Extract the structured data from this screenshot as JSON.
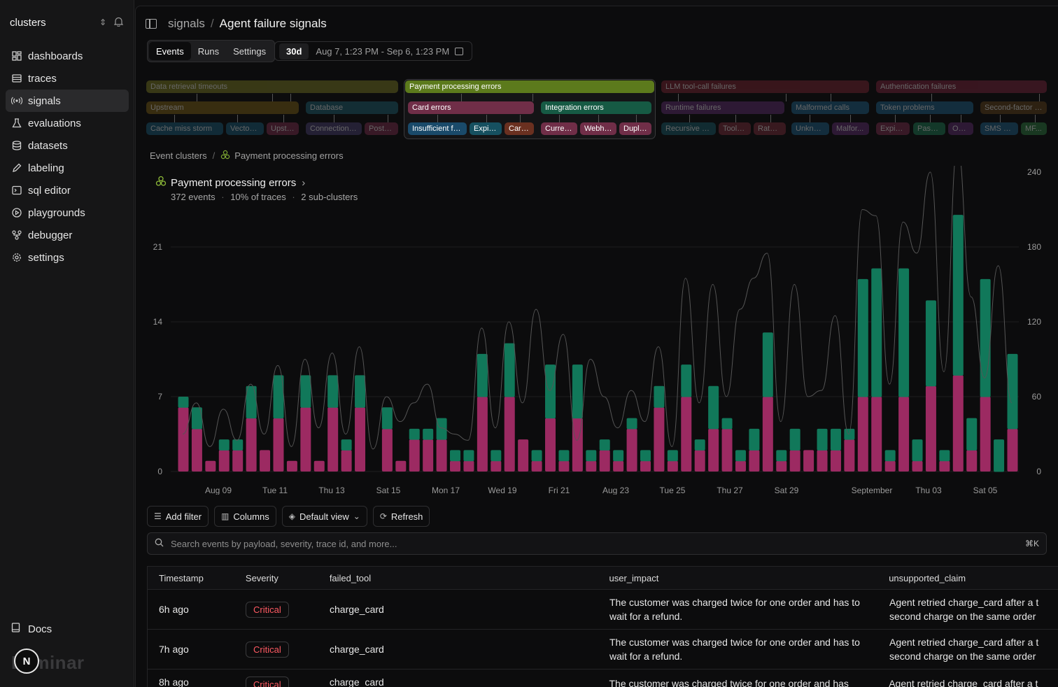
{
  "sidebar": {
    "title": "clusters",
    "items": [
      {
        "label": "dashboards",
        "icon": "dashboard-icon"
      },
      {
        "label": "traces",
        "icon": "traces-icon"
      },
      {
        "label": "signals",
        "icon": "signals-icon",
        "active": true
      },
      {
        "label": "evaluations",
        "icon": "flask-icon"
      },
      {
        "label": "datasets",
        "icon": "database-icon"
      },
      {
        "label": "labeling",
        "icon": "pen-icon"
      },
      {
        "label": "sql editor",
        "icon": "terminal-icon"
      },
      {
        "label": "playgrounds",
        "icon": "play-icon"
      },
      {
        "label": "debugger",
        "icon": "debug-icon"
      },
      {
        "label": "settings",
        "icon": "gear-icon"
      }
    ],
    "docs": "Docs",
    "logo": "Laminar",
    "avatar": "N"
  },
  "header": {
    "crumb": "signals",
    "sep": "/",
    "title": "Agent failure signals"
  },
  "tabs": [
    {
      "label": "Events",
      "active": true
    },
    {
      "label": "Runs"
    },
    {
      "label": "Settings"
    }
  ],
  "range": {
    "badge": "30d",
    "text": "Aug 7, 1:23 PM - Sep 6, 1:23 PM"
  },
  "cluster_tree": [
    {
      "label": "Data retrieval timeouts",
      "color": "#4a4a1a"
    },
    {
      "label": "Upstream",
      "color": "#4a3a12"
    },
    {
      "label": "Database",
      "color": "#163a44"
    },
    {
      "label": "Cache miss storm",
      "color": "#143848"
    },
    {
      "label": "Vector s...",
      "color": "#143848"
    },
    {
      "label": "Upstr...",
      "color": "#4a1e30"
    },
    {
      "label": "Connection p...",
      "color": "#2e2844"
    },
    {
      "label": "Postgr...",
      "color": "#4a1e30"
    },
    {
      "label": "Payment processing errors",
      "color": "#5c7a1c",
      "selected": true
    },
    {
      "label": "Card errors",
      "color": "#702e48"
    },
    {
      "label": "Integration errors",
      "color": "#165a44"
    },
    {
      "label": "Insufficient fu...",
      "color": "#1a4a6a"
    },
    {
      "label": "Expire...",
      "color": "#165060"
    },
    {
      "label": "Card ...",
      "color": "#6a3020"
    },
    {
      "label": "Curren...",
      "color": "#702e48"
    },
    {
      "label": "Webho...",
      "color": "#702e48"
    },
    {
      "label": "Duplic...",
      "color": "#702e48"
    },
    {
      "label": "LLM tool-call failures",
      "color": "#4a1a22"
    },
    {
      "label": "Runtime failures",
      "color": "#3a1e44"
    },
    {
      "label": "Malformed calls",
      "color": "#163a50"
    },
    {
      "label": "Recursive to...",
      "color": "#143840"
    },
    {
      "label": "Tool c...",
      "color": "#4a1e26"
    },
    {
      "label": "Rate li...",
      "color": "#4a1e26"
    },
    {
      "label": "Unknow...",
      "color": "#163a50"
    },
    {
      "label": "Malfor...",
      "color": "#3a1e44"
    },
    {
      "label": "Authentication failures",
      "color": "#4a1a28"
    },
    {
      "label": "Token problems",
      "color": "#163a50"
    },
    {
      "label": "Second-factor i...",
      "color": "#3a2a14"
    },
    {
      "label": "Expire...",
      "color": "#4a1e30"
    },
    {
      "label": "Passw...",
      "color": "#164a34"
    },
    {
      "label": "OA...",
      "color": "#3a1e44"
    },
    {
      "label": "SMS co...",
      "color": "#163a50"
    },
    {
      "label": "MF...",
      "color": "#1e4a2a"
    }
  ],
  "event_crumb": {
    "root": "Event clusters",
    "sep": "/",
    "current": "Payment processing errors"
  },
  "cluster_summary": {
    "title": "Payment processing errors",
    "events": "372 events",
    "traces": "10% of traces",
    "subclusters": "2 sub-clusters",
    "dot": "·"
  },
  "chart_data": {
    "type": "bar",
    "stacked": true,
    "x_ticks": [
      "Aug 09",
      "Tue 11",
      "Thu 13",
      "Sat 15",
      "Mon 17",
      "Wed 19",
      "Fri 21",
      "Aug 23",
      "Tue 25",
      "Thu 27",
      "Sat 29",
      "September",
      "Thu 03",
      "Sat 05"
    ],
    "y_left_ticks": [
      0,
      7,
      14,
      21
    ],
    "y_right_ticks": [
      0,
      60,
      120,
      180,
      240
    ],
    "ylim_left": [
      0,
      27
    ],
    "ylim_right": [
      0,
      240
    ],
    "grid": true,
    "colors": {
      "card_errors": "#9c2a62",
      "integration_errors": "#11785a",
      "total_line": "#555555"
    },
    "series": [
      {
        "values": [
          6,
          4,
          1,
          2,
          2,
          5,
          2,
          5,
          1,
          6,
          1,
          6,
          2,
          6,
          0,
          4,
          1,
          3,
          3,
          3,
          1,
          1,
          7,
          1,
          7,
          3,
          1,
          5,
          1,
          5,
          1,
          2,
          1,
          4,
          1,
          6,
          1,
          7,
          2,
          4,
          4,
          1,
          2,
          7,
          1,
          2,
          2,
          2,
          2,
          3,
          7,
          7,
          1,
          7,
          1,
          8,
          1,
          9,
          2,
          7,
          0,
          4
        ]
      },
      {
        "values": [
          1,
          2,
          0,
          1,
          1,
          3,
          0,
          4,
          0,
          3,
          0,
          3,
          1,
          3,
          0,
          2,
          0,
          1,
          1,
          2,
          1,
          1,
          4,
          1,
          5,
          0,
          1,
          5,
          1,
          5,
          1,
          1,
          1,
          1,
          1,
          2,
          1,
          3,
          1,
          4,
          1,
          1,
          2,
          6,
          1,
          2,
          0,
          2,
          2,
          1,
          11,
          12,
          1,
          12,
          2,
          8,
          1,
          15,
          3,
          11,
          3,
          7
        ]
      }
    ],
    "line_values": [
      30,
      55,
      20,
      50,
      25,
      70,
      30,
      85,
      20,
      90,
      35,
      95,
      30,
      100,
      18,
      60,
      40,
      55,
      70,
      35,
      30,
      25,
      115,
      35,
      120,
      55,
      130,
      65,
      110,
      25,
      90,
      60,
      35,
      65,
      40,
      100,
      20,
      155,
      55,
      150,
      60,
      130,
      155,
      175,
      40,
      150,
      60,
      65,
      125,
      30,
      210,
      205,
      70,
      200,
      175,
      240,
      80,
      260,
      140,
      75,
      165,
      55
    ]
  },
  "toolbar": {
    "add_filter": "Add filter",
    "columns": "Columns",
    "default_view": "Default view",
    "refresh": "Refresh"
  },
  "search": {
    "placeholder": "Search events by payload, severity, trace id, and more...",
    "shortcut": "⌘K"
  },
  "table": {
    "columns": [
      "Timestamp",
      "Severity",
      "failed_tool",
      "user_impact",
      "unsupported_claim"
    ],
    "rows": [
      {
        "timestamp": "6h ago",
        "severity": "Critical",
        "failed_tool": "charge_card",
        "user_impact": "The customer was charged twice for one order and has to wait for a refund.",
        "unsupported_claim": "Agent retried charge_card after a t second charge on the same order"
      },
      {
        "timestamp": "7h ago",
        "severity": "Critical",
        "failed_tool": "charge_card",
        "user_impact": "The customer was charged twice for one order and has to wait for a refund.",
        "unsupported_claim": "Agent retried charge_card after a t second charge on the same order"
      },
      {
        "timestamp": "8h ago",
        "severity": "Critical",
        "failed_tool": "charge_card",
        "user_impact": "The customer was charged twice for one order and has",
        "unsupported_claim": "Agent retried charge_card after a t"
      }
    ]
  }
}
